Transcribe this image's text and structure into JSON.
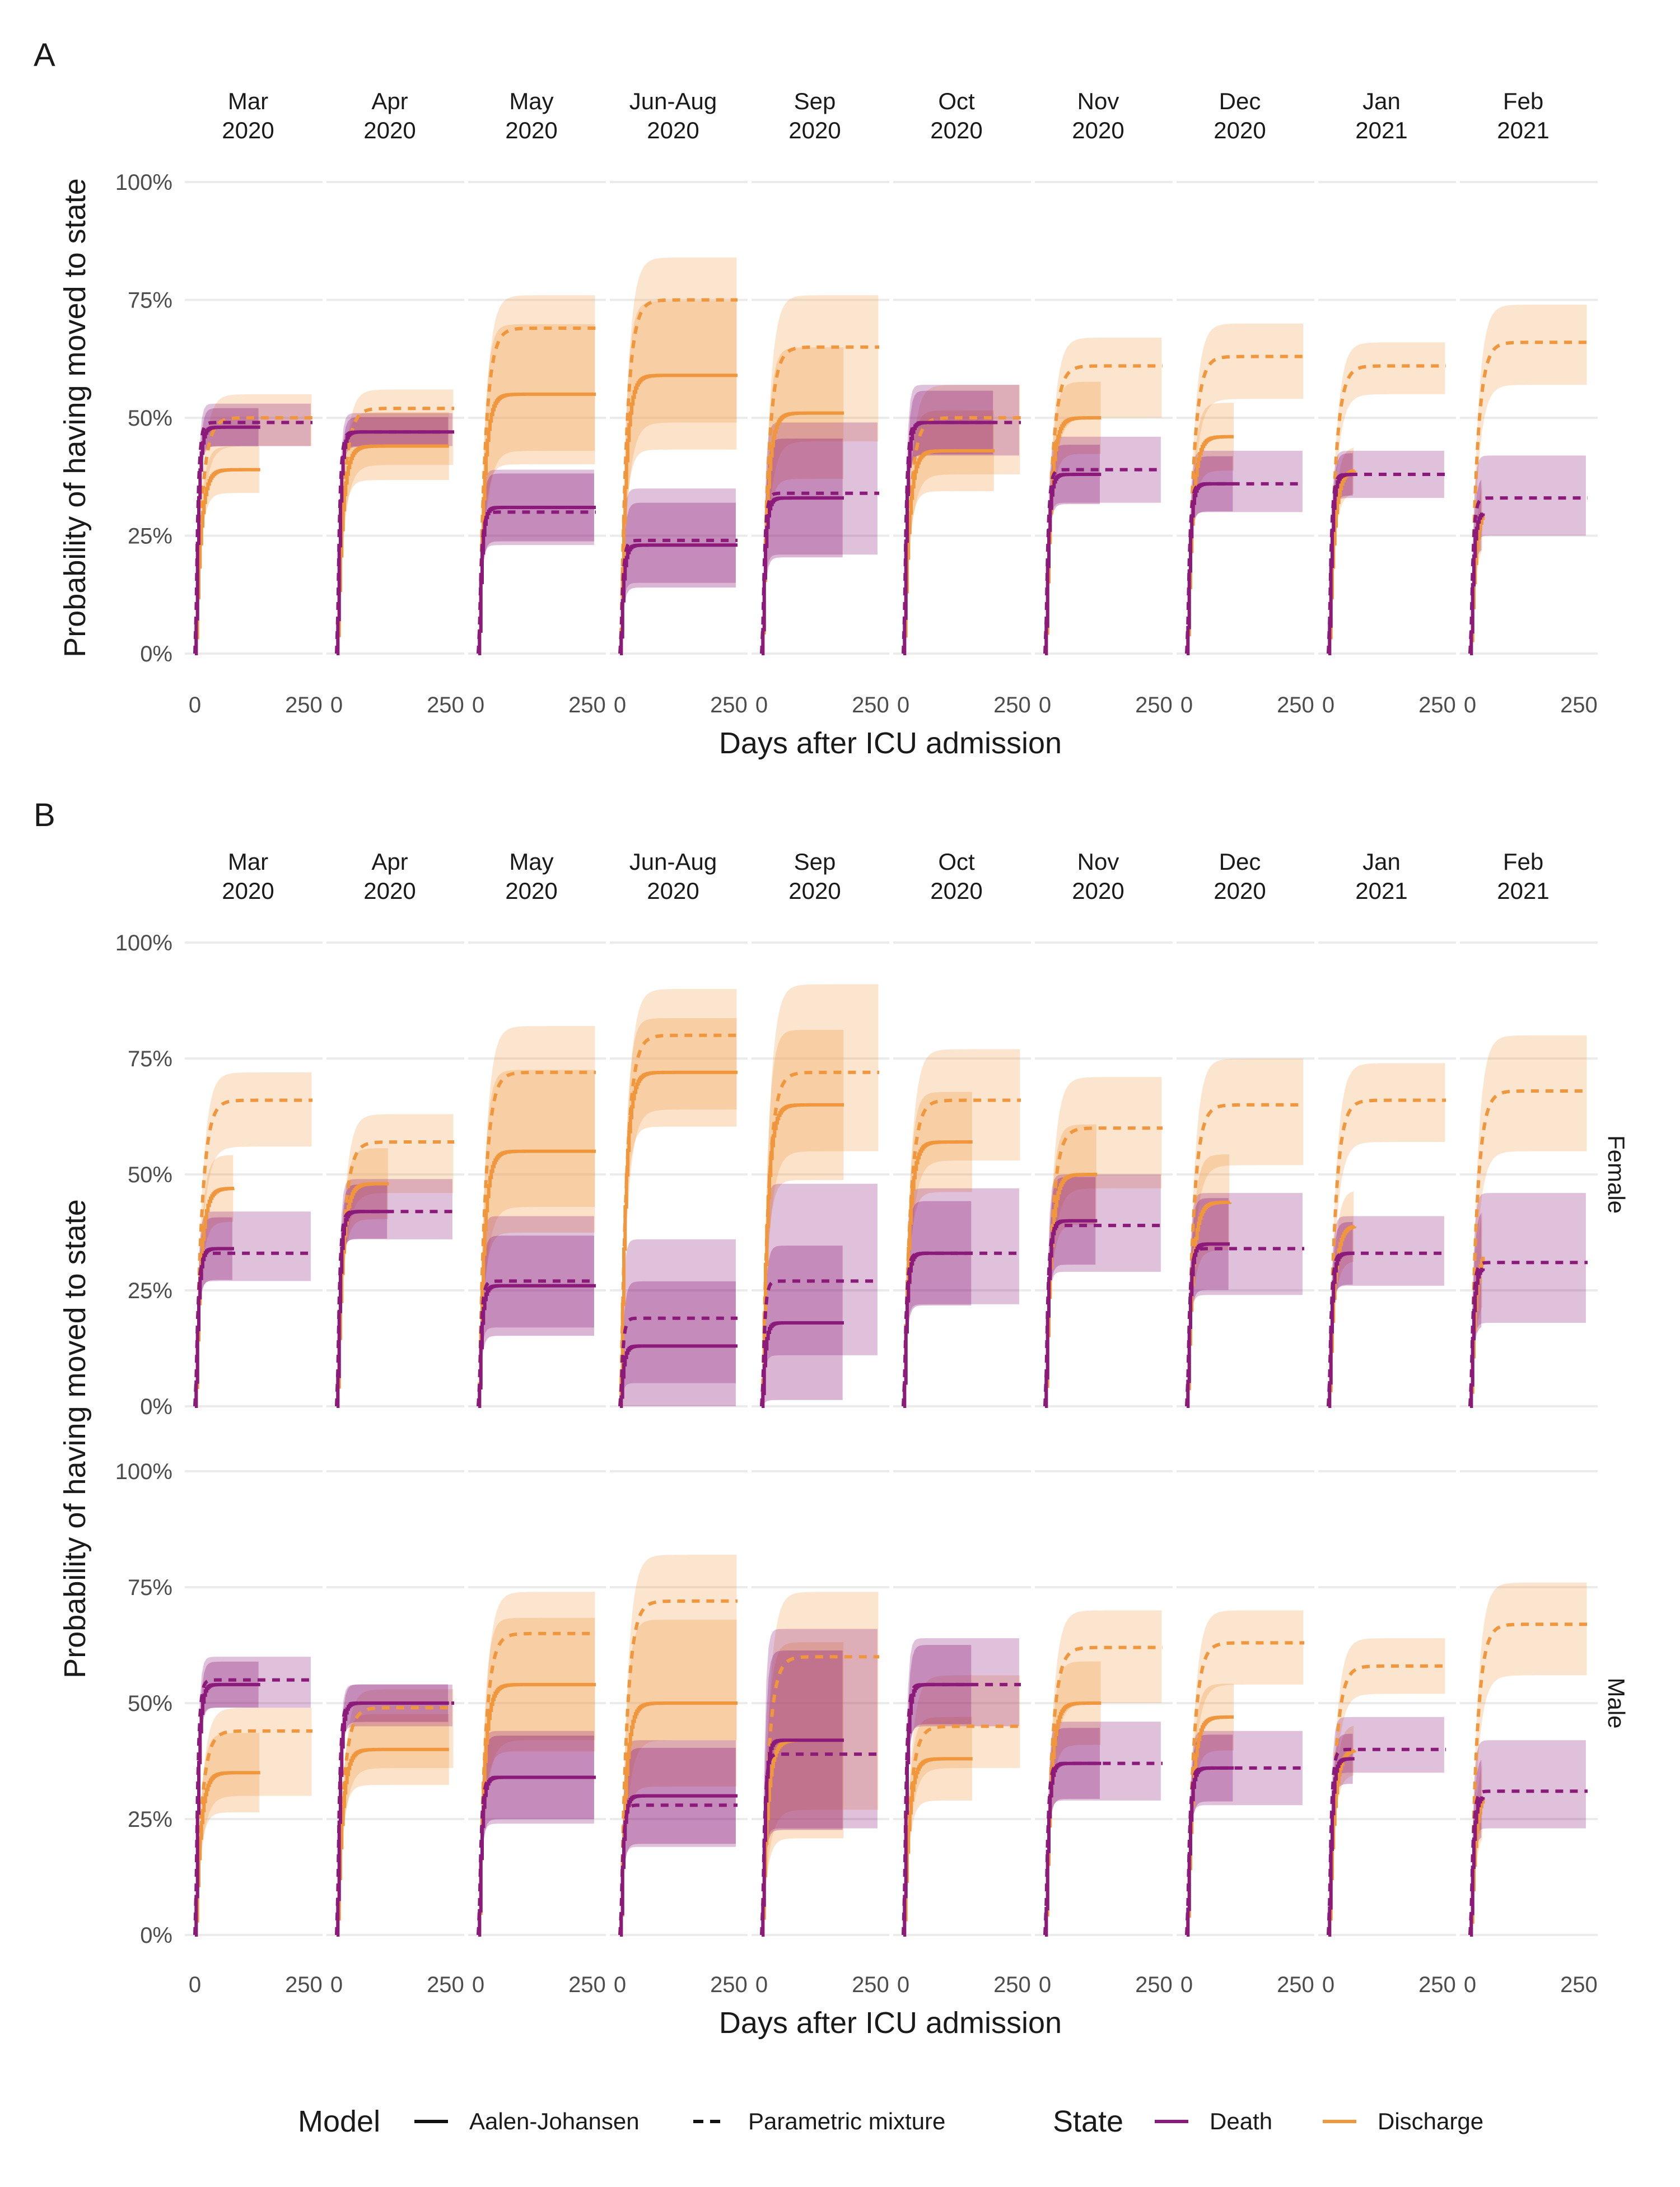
{
  "figure": {
    "x_axis_label": "Days after ICU admission",
    "y_axis_label": "Probability of having moved to state",
    "y_ticks": [
      "0%",
      "25%",
      "50%",
      "75%",
      "100%"
    ],
    "x_ticks": [
      "0",
      "250"
    ],
    "months": [
      [
        "Mar",
        "2020"
      ],
      [
        "Apr",
        "2020"
      ],
      [
        "May",
        "2020"
      ],
      [
        "Jun-Aug",
        "2020"
      ],
      [
        "Sep",
        "2020"
      ],
      [
        "Oct",
        "2020"
      ],
      [
        "Nov",
        "2020"
      ],
      [
        "Dec",
        "2020"
      ],
      [
        "Jan",
        "2021"
      ],
      [
        "Feb",
        "2021"
      ]
    ],
    "colors": {
      "Death": "#8b1a7a",
      "Discharge": "#f0963c",
      "grid": "#ebebeb",
      "text": "#1a1a1a",
      "tick": "#4d4d4d"
    }
  },
  "legend": {
    "model_title": "Model",
    "model_items": [
      "Aalen-Johansen",
      "Parametric mixture"
    ],
    "state_title": "State",
    "state_items": [
      "Death",
      "Discharge"
    ]
  },
  "chart_data": [
    {
      "panel": "A",
      "type": "line",
      "xlim": [
        0,
        270
      ],
      "ylim": [
        0,
        1
      ],
      "facets": [
        {
          "month": "Mar 2020",
          "death": {
            "aj": 0.48,
            "aj_end": 150,
            "pm": 0.49,
            "lo": 0.44,
            "hi": 0.53
          },
          "discharge": {
            "aj": 0.39,
            "aj_end": 150,
            "pm": 0.5,
            "lo": 0.44,
            "hi": 0.55
          }
        },
        {
          "month": "Apr 2020",
          "death": {
            "aj": 0.47,
            "aj_end": 260,
            "pm": 0.47,
            "lo": 0.44,
            "hi": 0.51
          },
          "discharge": {
            "aj": 0.44,
            "aj_end": 260,
            "pm": 0.52,
            "lo": 0.4,
            "hi": 0.56
          }
        },
        {
          "month": "May 2020",
          "death": {
            "aj": 0.31,
            "aj_end": 270,
            "pm": 0.3,
            "lo": 0.23,
            "hi": 0.39
          },
          "discharge": {
            "aj": 0.55,
            "aj_end": 270,
            "pm": 0.69,
            "lo": 0.43,
            "hi": 0.76
          }
        },
        {
          "month": "Jun-Aug 2020",
          "death": {
            "aj": 0.23,
            "aj_end": 270,
            "pm": 0.24,
            "lo": 0.15,
            "hi": 0.35
          },
          "discharge": {
            "aj": 0.59,
            "aj_end": 270,
            "pm": 0.75,
            "lo": 0.49,
            "hi": 0.84
          }
        },
        {
          "month": "Sep 2020",
          "death": {
            "aj": 0.33,
            "aj_end": 190,
            "pm": 0.34,
            "lo": 0.21,
            "hi": 0.49
          },
          "discharge": {
            "aj": 0.51,
            "aj_end": 190,
            "pm": 0.65,
            "lo": 0.45,
            "hi": 0.76
          }
        },
        {
          "month": "Oct 2020",
          "death": {
            "aj": 0.49,
            "aj_end": 210,
            "pm": 0.49,
            "lo": 0.42,
            "hi": 0.57
          },
          "discharge": {
            "aj": 0.43,
            "aj_end": 210,
            "pm": 0.5,
            "lo": 0.38,
            "hi": 0.57
          }
        },
        {
          "month": "Nov 2020",
          "death": {
            "aj": 0.38,
            "aj_end": 130,
            "pm": 0.39,
            "lo": 0.32,
            "hi": 0.46
          },
          "discharge": {
            "aj": 0.5,
            "aj_end": 130,
            "pm": 0.61,
            "lo": 0.5,
            "hi": 0.67
          }
        },
        {
          "month": "Dec 2020",
          "death": {
            "aj": 0.36,
            "aj_end": 110,
            "pm": 0.36,
            "lo": 0.3,
            "hi": 0.43
          },
          "discharge": {
            "aj": 0.46,
            "aj_end": 110,
            "pm": 0.63,
            "lo": 0.54,
            "hi": 0.7
          }
        },
        {
          "month": "Jan 2021",
          "death": {
            "aj": 0.38,
            "aj_end": 60,
            "pm": 0.38,
            "lo": 0.33,
            "hi": 0.43
          },
          "discharge": {
            "aj": 0.39,
            "aj_end": 60,
            "pm": 0.61,
            "lo": 0.55,
            "hi": 0.66
          }
        },
        {
          "month": "Feb 2021",
          "death": {
            "aj": 0.3,
            "aj_end": 30,
            "pm": 0.33,
            "lo": 0.25,
            "hi": 0.42
          },
          "discharge": {
            "aj": 0.32,
            "aj_end": 30,
            "pm": 0.66,
            "lo": 0.57,
            "hi": 0.74
          }
        }
      ]
    },
    {
      "panel": "B",
      "type": "line",
      "xlim": [
        0,
        270
      ],
      "ylim": [
        0,
        1
      ],
      "rows": [
        {
          "label": "Female",
          "facets": [
            {
              "month": "Mar 2020",
              "death": {
                "aj": 0.34,
                "aj_end": 90,
                "pm": 0.33,
                "lo": 0.27,
                "hi": 0.42
              },
              "discharge": {
                "aj": 0.47,
                "aj_end": 90,
                "pm": 0.66,
                "lo": 0.56,
                "hi": 0.72
              }
            },
            {
              "month": "Apr 2020",
              "death": {
                "aj": 0.42,
                "aj_end": 120,
                "pm": 0.42,
                "lo": 0.36,
                "hi": 0.49
              },
              "discharge": {
                "aj": 0.48,
                "aj_end": 120,
                "pm": 0.57,
                "lo": 0.46,
                "hi": 0.63
              }
            },
            {
              "month": "May 2020",
              "death": {
                "aj": 0.26,
                "aj_end": 270,
                "pm": 0.27,
                "lo": 0.17,
                "hi": 0.41
              },
              "discharge": {
                "aj": 0.55,
                "aj_end": 270,
                "pm": 0.72,
                "lo": 0.43,
                "hi": 0.82
              }
            },
            {
              "month": "Jun-Aug 2020",
              "death": {
                "aj": 0.13,
                "aj_end": 270,
                "pm": 0.19,
                "lo": 0.05,
                "hi": 0.36
              },
              "discharge": {
                "aj": 0.72,
                "aj_end": 270,
                "pm": 0.8,
                "lo": 0.64,
                "hi": 0.9
              }
            },
            {
              "month": "Sep 2020",
              "death": {
                "aj": 0.18,
                "aj_end": 190,
                "pm": 0.27,
                "lo": 0.11,
                "hi": 0.48
              },
              "discharge": {
                "aj": 0.65,
                "aj_end": 190,
                "pm": 0.72,
                "lo": 0.55,
                "hi": 0.91
              }
            },
            {
              "month": "Oct 2020",
              "death": {
                "aj": 0.33,
                "aj_end": 160,
                "pm": 0.33,
                "lo": 0.22,
                "hi": 0.47
              },
              "discharge": {
                "aj": 0.57,
                "aj_end": 160,
                "pm": 0.66,
                "lo": 0.53,
                "hi": 0.77
              }
            },
            {
              "month": "Nov 2020",
              "death": {
                "aj": 0.4,
                "aj_end": 120,
                "pm": 0.39,
                "lo": 0.29,
                "hi": 0.5
              },
              "discharge": {
                "aj": 0.5,
                "aj_end": 120,
                "pm": 0.6,
                "lo": 0.47,
                "hi": 0.71
              }
            },
            {
              "month": "Dec 2020",
              "death": {
                "aj": 0.35,
                "aj_end": 100,
                "pm": 0.34,
                "lo": 0.24,
                "hi": 0.46
              },
              "discharge": {
                "aj": 0.44,
                "aj_end": 100,
                "pm": 0.65,
                "lo": 0.52,
                "hi": 0.75
              }
            },
            {
              "month": "Jan 2021",
              "death": {
                "aj": 0.33,
                "aj_end": 60,
                "pm": 0.33,
                "lo": 0.26,
                "hi": 0.41
              },
              "discharge": {
                "aj": 0.39,
                "aj_end": 60,
                "pm": 0.66,
                "lo": 0.57,
                "hi": 0.74
              }
            },
            {
              "month": "Feb 2021",
              "death": {
                "aj": 0.3,
                "aj_end": 30,
                "pm": 0.31,
                "lo": 0.18,
                "hi": 0.46
              },
              "discharge": {
                "aj": 0.35,
                "aj_end": 30,
                "pm": 0.68,
                "lo": 0.55,
                "hi": 0.8
              }
            }
          ]
        },
        {
          "label": "Male",
          "facets": [
            {
              "month": "Mar 2020",
              "death": {
                "aj": 0.54,
                "aj_end": 150,
                "pm": 0.55,
                "lo": 0.49,
                "hi": 0.6
              },
              "discharge": {
                "aj": 0.35,
                "aj_end": 150,
                "pm": 0.44,
                "lo": 0.3,
                "hi": 0.49
              }
            },
            {
              "month": "Apr 2020",
              "death": {
                "aj": 0.5,
                "aj_end": 260,
                "pm": 0.5,
                "lo": 0.45,
                "hi": 0.54
              },
              "discharge": {
                "aj": 0.4,
                "aj_end": 260,
                "pm": 0.49,
                "lo": 0.36,
                "hi": 0.53
              }
            },
            {
              "month": "May 2020",
              "death": {
                "aj": 0.34,
                "aj_end": 270,
                "pm": 0.34,
                "lo": 0.24,
                "hi": 0.44
              },
              "discharge": {
                "aj": 0.54,
                "aj_end": 270,
                "pm": 0.65,
                "lo": 0.42,
                "hi": 0.74
              }
            },
            {
              "month": "Jun-Aug 2020",
              "death": {
                "aj": 0.3,
                "aj_end": 270,
                "pm": 0.28,
                "lo": 0.19,
                "hi": 0.42
              },
              "discharge": {
                "aj": 0.5,
                "aj_end": 270,
                "pm": 0.72,
                "lo": 0.42,
                "hi": 0.82
              }
            },
            {
              "month": "Sep 2020",
              "death": {
                "aj": 0.42,
                "aj_end": 190,
                "pm": 0.39,
                "lo": 0.23,
                "hi": 0.66
              },
              "discharge": {
                "aj": 0.42,
                "aj_end": 190,
                "pm": 0.6,
                "lo": 0.27,
                "hi": 0.74
              }
            },
            {
              "month": "Oct 2020",
              "death": {
                "aj": 0.54,
                "aj_end": 160,
                "pm": 0.54,
                "lo": 0.45,
                "hi": 0.64
              },
              "discharge": {
                "aj": 0.38,
                "aj_end": 160,
                "pm": 0.45,
                "lo": 0.36,
                "hi": 0.56
              }
            },
            {
              "month": "Nov 2020",
              "death": {
                "aj": 0.37,
                "aj_end": 130,
                "pm": 0.37,
                "lo": 0.29,
                "hi": 0.46
              },
              "discharge": {
                "aj": 0.5,
                "aj_end": 130,
                "pm": 0.62,
                "lo": 0.5,
                "hi": 0.7
              }
            },
            {
              "month": "Dec 2020",
              "death": {
                "aj": 0.36,
                "aj_end": 110,
                "pm": 0.36,
                "lo": 0.28,
                "hi": 0.44
              },
              "discharge": {
                "aj": 0.47,
                "aj_end": 110,
                "pm": 0.63,
                "lo": 0.54,
                "hi": 0.7
              }
            },
            {
              "month": "Jan 2021",
              "death": {
                "aj": 0.38,
                "aj_end": 60,
                "pm": 0.4,
                "lo": 0.35,
                "hi": 0.47
              },
              "discharge": {
                "aj": 0.4,
                "aj_end": 60,
                "pm": 0.58,
                "lo": 0.52,
                "hi": 0.64
              }
            },
            {
              "month": "Feb 2021",
              "death": {
                "aj": 0.3,
                "aj_end": 30,
                "pm": 0.31,
                "lo": 0.23,
                "hi": 0.42
              },
              "discharge": {
                "aj": 0.32,
                "aj_end": 30,
                "pm": 0.67,
                "lo": 0.56,
                "hi": 0.76
              }
            }
          ]
        }
      ]
    }
  ]
}
